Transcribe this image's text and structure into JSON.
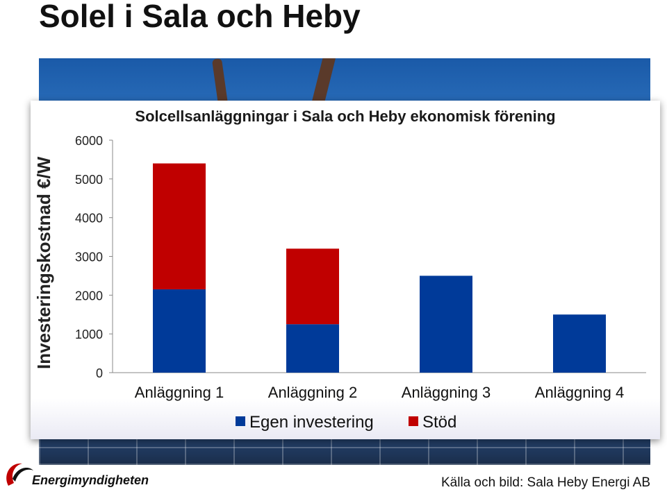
{
  "slide": {
    "title": "Solel i Sala och Heby",
    "source": "Källa och bild: Sala Heby Energi AB",
    "logo_text": "Energimyndigheten"
  },
  "colors": {
    "egen": "#003a99",
    "stod": "#c00000"
  },
  "chart_data": {
    "type": "bar",
    "stacked": true,
    "title": "Solcellsanläggningar i Sala och Heby ekonomisk förening",
    "ylabel": "Investeringskostnad €/W",
    "xlabel": "",
    "categories": [
      "Anläggning 1",
      "Anläggning 2",
      "Anläggning 3",
      "Anläggning 4"
    ],
    "series": [
      {
        "name": "Egen investering",
        "values": [
          2150,
          1250,
          2500,
          1500
        ]
      },
      {
        "name": "Stöd",
        "values": [
          3250,
          1950,
          0,
          0
        ]
      }
    ],
    "ylim": [
      0,
      6000
    ],
    "yticks": [
      "0",
      "1000",
      "2000",
      "3000",
      "4000",
      "5000",
      "6000"
    ],
    "legend": "bottom"
  }
}
